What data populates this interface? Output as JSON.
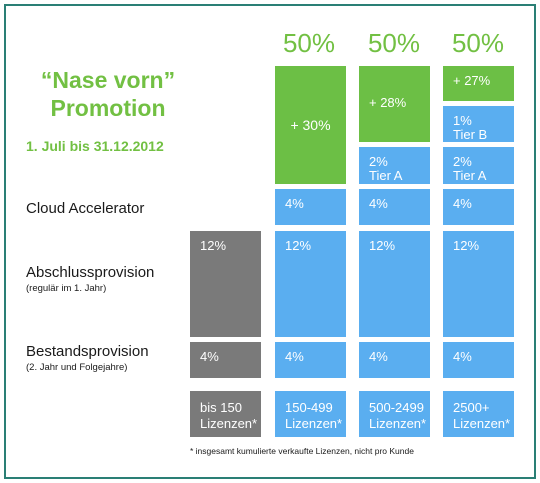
{
  "title_line1": "“Nase vorn”",
  "title_line2": "Promotion",
  "dates": "1. Juli bis 31.12.2012",
  "rows": {
    "cloud": "Cloud Accelerator",
    "abschluss": "Abschlussprovision",
    "abschluss_sub": "(regulär im 1. Jahr)",
    "bestand": "Bestandsprovision",
    "bestand_sub": "(2. Jahr und Folgejahre)"
  },
  "columns": [
    {
      "header": "",
      "abschluss": "12%",
      "bestand": "4%",
      "tier_label_l1": "bis 150",
      "tier_label_l2": "Lizenzen*"
    },
    {
      "header": "50%",
      "promo": "+ 30%",
      "cloud": "4%",
      "abschluss": "12%",
      "bestand": "4%",
      "tier_label_l1": "150-499",
      "tier_label_l2": "Lizenzen*"
    },
    {
      "header": "50%",
      "promo": "+ 28%",
      "tierA": "2%",
      "tierA_label": "Tier A",
      "cloud": "4%",
      "abschluss": "12%",
      "bestand": "4%",
      "tier_label_l1": "500-2499",
      "tier_label_l2": "Lizenzen*"
    },
    {
      "header": "50%",
      "promo": "+ 27%",
      "tierB": "1%",
      "tierB_label": "Tier B",
      "tierA": "2%",
      "tierA_label": "Tier A",
      "cloud": "4%",
      "abschluss": "12%",
      "bestand": "4%",
      "tier_label_l1": "2500+",
      "tier_label_l2": "Lizenzen*"
    }
  ],
  "footnote": "* insgesamt kumulierte verkaufte Lizenzen, nicht pro Kunde",
  "colors": {
    "blue": "#5aaef0",
    "green": "#6cbf45",
    "gray": "#7a7a7a",
    "title_green": "#72c043",
    "frame": "#2a7f75"
  }
}
